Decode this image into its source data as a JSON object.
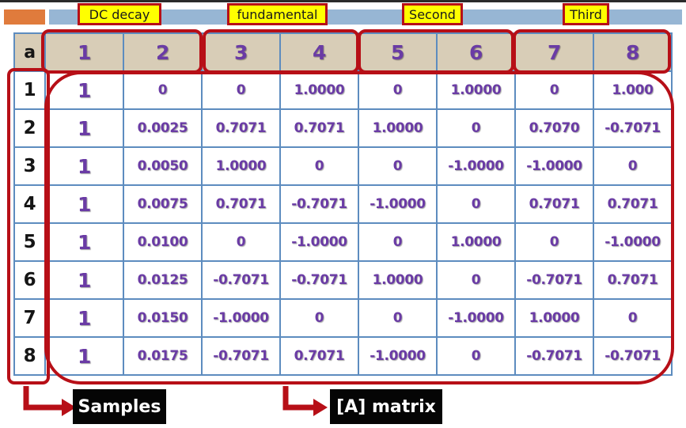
{
  "group_labels": [
    "DC decay",
    "fundamental",
    "Second",
    "Third"
  ],
  "corner_label": "a",
  "column_headers": [
    "1",
    "2",
    "3",
    "4",
    "5",
    "6",
    "7",
    "8"
  ],
  "rows": [
    {
      "label": "1",
      "cells": [
        "1",
        "0",
        "0",
        "1.0000",
        "0",
        "1.0000",
        "0",
        "1.000"
      ]
    },
    {
      "label": "2",
      "cells": [
        "1",
        "0.0025",
        "0.7071",
        "0.7071",
        "1.0000",
        "0",
        "0.7070",
        "-0.7071"
      ]
    },
    {
      "label": "3",
      "cells": [
        "1",
        "0.0050",
        "1.0000",
        "0",
        "0",
        "-1.0000",
        "-1.0000",
        "0"
      ]
    },
    {
      "label": "4",
      "cells": [
        "1",
        "0.0075",
        "0.7071",
        "-0.7071",
        "-1.0000",
        "0",
        "0.7071",
        "0.7071"
      ]
    },
    {
      "label": "5",
      "cells": [
        "1",
        "0.0100",
        "0",
        "-1.0000",
        "0",
        "1.0000",
        "0",
        "-1.0000"
      ]
    },
    {
      "label": "6",
      "cells": [
        "1",
        "0.0125",
        "-0.7071",
        "-0.7071",
        "1.0000",
        "0",
        "-0.7071",
        "0.7071"
      ]
    },
    {
      "label": "7",
      "cells": [
        "1",
        "0.0150",
        "-1.0000",
        "0",
        "0",
        "-1.0000",
        "1.0000",
        "0"
      ]
    },
    {
      "label": "8",
      "cells": [
        "1",
        "0.0175",
        "-0.7071",
        "0.7071",
        "-1.0000",
        "0",
        "-0.7071",
        "-0.7071"
      ]
    }
  ],
  "callouts": {
    "samples": "Samples",
    "matrix": "[A] matrix"
  },
  "colors": {
    "annotation_red": "#b70f17",
    "label_yellow": "#ffff00",
    "value_purple": "#6a3ba5",
    "grid_blue": "#5d8cbf",
    "header_tan": "#d8cdb7"
  }
}
